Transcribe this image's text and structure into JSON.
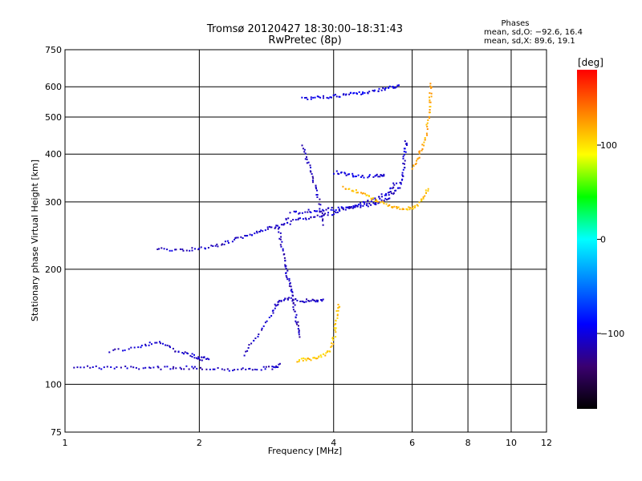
{
  "chart_data": {
    "type": "scatter",
    "title_line1": "Tromsø 20120427 18:30:00–18:31:43",
    "title_line2": "RwPretec (8p)",
    "phases": {
      "heading": "Phases",
      "line1": "mean, sd,O: −92.6, 16.4",
      "line2": "mean, sd,X:  89.6, 19.1"
    },
    "xlabel": "Frequency [MHz]",
    "ylabel": "Stationary phase Virtual Height [km]",
    "x_scale": "log",
    "y_scale": "log",
    "xlim": [
      1,
      12
    ],
    "ylim": [
      75,
      750
    ],
    "x_ticks": [
      1,
      2,
      4,
      6,
      8,
      10,
      12
    ],
    "x_ticklabels": [
      "1",
      "2",
      "4",
      "6",
      "8",
      "10",
      "12"
    ],
    "x_gridlines": [
      2,
      4,
      6,
      8,
      10
    ],
    "y_ticks": [
      75,
      100,
      200,
      300,
      400,
      500,
      600,
      750
    ],
    "y_ticklabels": [
      "75",
      "100",
      "200",
      "300",
      "400",
      "500",
      "600",
      "750"
    ],
    "y_gridlines": [
      100,
      200,
      300,
      400,
      500,
      600
    ],
    "grid": true,
    "colorbar": {
      "label": "[deg]",
      "ticks": [
        100,
        0,
        -100
      ],
      "ticklabels": [
        "100",
        "0",
        "−100"
      ],
      "range": [
        -180,
        180
      ],
      "colors": [
        "#000000",
        "#3a0070",
        "#0000ff",
        "#0080ff",
        "#00ffff",
        "#00ff00",
        "#ffff00",
        "#ff8000",
        "#ff0000"
      ]
    },
    "traces": [
      {
        "phase": -110,
        "points": [
          [
            1.05,
            112
          ],
          [
            1.2,
            111
          ],
          [
            1.4,
            111
          ],
          [
            1.6,
            111
          ],
          [
            1.8,
            111
          ],
          [
            2.0,
            111
          ],
          [
            2.3,
            110
          ],
          [
            2.6,
            110
          ],
          [
            2.9,
            111
          ],
          [
            3.05,
            113
          ]
        ]
      },
      {
        "phase": -108,
        "points": [
          [
            1.25,
            122
          ],
          [
            1.45,
            126
          ],
          [
            1.6,
            130
          ],
          [
            1.75,
            123
          ],
          [
            1.9,
            120
          ],
          [
            2.0,
            117
          ],
          [
            2.1,
            118
          ]
        ]
      },
      {
        "phase": -108,
        "points": [
          [
            2.5,
            120
          ],
          [
            2.7,
            135
          ],
          [
            2.9,
            155
          ],
          [
            3.0,
            166
          ],
          [
            3.15,
            168
          ],
          [
            3.4,
            166
          ],
          [
            3.6,
            167
          ],
          [
            3.8,
            166
          ]
        ]
      },
      {
        "phase": -108,
        "points": [
          [
            1.6,
            228
          ],
          [
            1.8,
            225
          ],
          [
            2.0,
            228
          ],
          [
            2.2,
            232
          ],
          [
            2.4,
            240
          ],
          [
            2.6,
            248
          ],
          [
            2.8,
            256
          ],
          [
            3.0,
            260
          ],
          [
            3.2,
            265
          ]
        ]
      },
      {
        "phase": -105,
        "points": [
          [
            3.1,
            270
          ],
          [
            3.4,
            273
          ],
          [
            3.7,
            276
          ],
          [
            4.0,
            282
          ],
          [
            4.3,
            290
          ],
          [
            4.6,
            298
          ],
          [
            5.0,
            308
          ],
          [
            5.3,
            320
          ],
          [
            5.5,
            340
          ]
        ]
      },
      {
        "phase": -105,
        "points": [
          [
            3.2,
            282
          ],
          [
            3.5,
            285
          ],
          [
            3.8,
            287
          ],
          [
            4.1,
            290
          ],
          [
            4.4,
            292
          ],
          [
            4.7,
            295
          ],
          [
            5.0,
            300
          ],
          [
            5.3,
            310
          ],
          [
            5.6,
            330
          ],
          [
            5.7,
            360
          ],
          [
            5.75,
            400
          ],
          [
            5.8,
            440
          ]
        ]
      },
      {
        "phase": -102,
        "points": [
          [
            4.0,
            360
          ],
          [
            4.3,
            355
          ],
          [
            4.6,
            352
          ],
          [
            5.0,
            352
          ],
          [
            5.2,
            354
          ]
        ]
      },
      {
        "phase": -100,
        "points": [
          [
            3.4,
            560
          ],
          [
            3.7,
            565
          ],
          [
            4.0,
            570
          ],
          [
            4.3,
            575
          ],
          [
            4.6,
            580
          ],
          [
            5.0,
            590
          ],
          [
            5.3,
            600
          ],
          [
            5.6,
            605
          ]
        ]
      },
      {
        "phase": -112,
        "points": [
          [
            3.0,
            260
          ],
          [
            3.05,
            230
          ],
          [
            3.1,
            205
          ],
          [
            3.15,
            190
          ],
          [
            3.2,
            175
          ],
          [
            3.25,
            160
          ],
          [
            3.3,
            145
          ],
          [
            3.35,
            133
          ]
        ]
      },
      {
        "phase": -112,
        "points": [
          [
            3.4,
            420
          ],
          [
            3.5,
            380
          ],
          [
            3.6,
            340
          ],
          [
            3.7,
            300
          ],
          [
            3.8,
            260
          ]
        ]
      },
      {
        "phase": 110,
        "points": [
          [
            3.3,
            116
          ],
          [
            3.5,
            117
          ],
          [
            3.7,
            118
          ],
          [
            3.9,
            122
          ],
          [
            4.0,
            135
          ],
          [
            4.05,
            150
          ],
          [
            4.1,
            165
          ]
        ]
      },
      {
        "phase": 115,
        "points": [
          [
            4.2,
            330
          ],
          [
            4.5,
            320
          ],
          [
            4.8,
            310
          ],
          [
            5.1,
            300
          ],
          [
            5.4,
            292
          ],
          [
            5.7,
            288
          ],
          [
            6.0,
            290
          ],
          [
            6.3,
            305
          ],
          [
            6.5,
            330
          ]
        ]
      },
      {
        "phase": 120,
        "points": [
          [
            6.0,
            370
          ],
          [
            6.2,
            400
          ],
          [
            6.4,
            440
          ],
          [
            6.5,
            500
          ],
          [
            6.55,
            560
          ],
          [
            6.6,
            620
          ]
        ]
      }
    ]
  }
}
